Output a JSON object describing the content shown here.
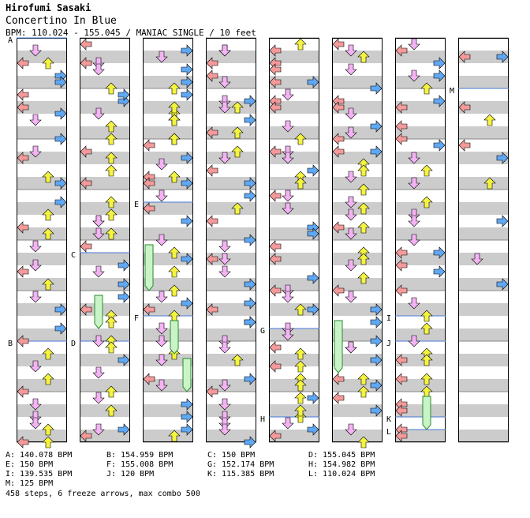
{
  "header": {
    "artist": "Hirofumi Sasaki",
    "title": "Concertino In Blue",
    "meta": "BPM: 110.024 - 155.045 / MANIAC SINGLE / 10 feet"
  },
  "colors": {
    "left_arrow": "#f49a9a",
    "down_arrow": "#f4b4f4",
    "up_arrow": "#f4f440",
    "right_arrow": "#60a8f4",
    "freeze": "#c8f4c8",
    "stripe": "#cccccc",
    "bpm_line": "#4a7ad8"
  },
  "columns": [
    {
      "markers": [
        {
          "label": "A",
          "beat": 0
        },
        {
          "label": "B",
          "beat": 24
        }
      ]
    },
    {
      "markers": [
        {
          "label": "C",
          "beat": 17
        },
        {
          "label": "D",
          "beat": 24
        }
      ]
    },
    {
      "markers": [
        {
          "label": "E",
          "beat": 13
        },
        {
          "label": "F",
          "beat": 22
        }
      ]
    },
    {
      "markers": []
    },
    {
      "markers": [
        {
          "label": "G",
          "beat": 23
        },
        {
          "label": "H",
          "beat": 30
        }
      ]
    },
    {
      "markers": []
    },
    {
      "markers": [
        {
          "label": "I",
          "beat": 22
        },
        {
          "label": "J",
          "beat": 24
        },
        {
          "label": "K",
          "beat": 30
        },
        {
          "label": "L",
          "beat": 31
        }
      ]
    },
    {
      "markers": [
        {
          "label": "M",
          "beat": 4
        }
      ]
    }
  ],
  "freezes": [
    {
      "col": 1,
      "lane": 1,
      "start": 20,
      "end": 23
    },
    {
      "col": 2,
      "lane": 0,
      "start": 16,
      "end": 20
    },
    {
      "col": 2,
      "lane": 2,
      "start": 22,
      "end": 25
    },
    {
      "col": 2,
      "lane": 3,
      "start": 25,
      "end": 28
    },
    {
      "col": 5,
      "lane": 0,
      "start": 22,
      "end": 26.5
    },
    {
      "col": 6,
      "lane": 2,
      "start": 28,
      "end": 31
    }
  ],
  "bpm_legend": [
    "A: 140.078 BPM",
    "B: 154.959 BPM",
    "C: 150 BPM",
    "D: 155.045 BPM",
    "E: 150 BPM",
    "F: 155.008 BPM",
    "G: 152.174 BPM",
    "H: 154.982 BPM",
    "I: 139.535 BPM",
    "J: 120 BPM",
    "K: 115.385 BPM",
    "L: 110.024 BPM",
    "M: 125 BPM"
  ],
  "summary": "458 steps, 6 freeze arrows, max combo 500"
}
